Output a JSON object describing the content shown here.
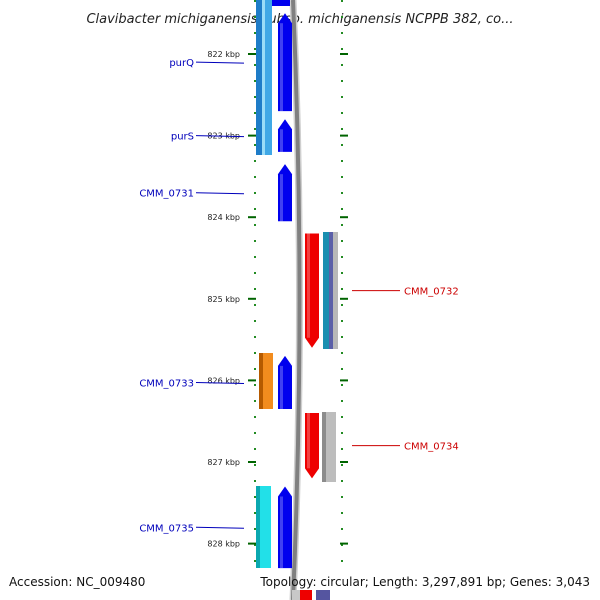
{
  "title": "Clavibacter michiganensis subsp. michiganensis NCPPB 382, co...",
  "accession": "Accession: NC_009480",
  "summary": "Topology: circular; Length: 3,297,891 bp; Genes: 3,043",
  "ticks": [
    {
      "label": "822 kbp",
      "kb": 822
    },
    {
      "label": "823 kbp",
      "kb": 823
    },
    {
      "label": "824 kbp",
      "kb": 824
    },
    {
      "label": "825 kbp",
      "kb": 825
    },
    {
      "label": "826 kbp",
      "kb": 826
    },
    {
      "label": "827 kbp",
      "kb": 827
    },
    {
      "label": "828 kbp",
      "kb": 828
    }
  ],
  "genes": [
    {
      "name": "purQ",
      "strand": "forward",
      "start_kb": 821.5,
      "end_kb": 822.7
    },
    {
      "name": "purS",
      "strand": "forward",
      "start_kb": 822.8,
      "end_kb": 823.2
    },
    {
      "name": "CMM_0731",
      "strand": "forward",
      "start_kb": 823.35,
      "end_kb": 824.05
    },
    {
      "name": "CMM_0732",
      "strand": "reverse",
      "start_kb": 824.2,
      "end_kb": 825.6
    },
    {
      "name": "CMM_0733",
      "strand": "forward",
      "start_kb": 825.7,
      "end_kb": 826.35
    },
    {
      "name": "CMM_0734",
      "strand": "reverse",
      "start_kb": 826.4,
      "end_kb": 827.2
    },
    {
      "name": "CMM_0735",
      "strand": "forward",
      "start_kb": 827.3,
      "end_kb": 828.3
    }
  ],
  "colors": {
    "forward_label": "#0000bb",
    "reverse_label": "#cc0000",
    "cds_forward": "#0000ee",
    "cds_reverse": "#ee0000",
    "tick": "#006400",
    "backbone": "#808080"
  }
}
